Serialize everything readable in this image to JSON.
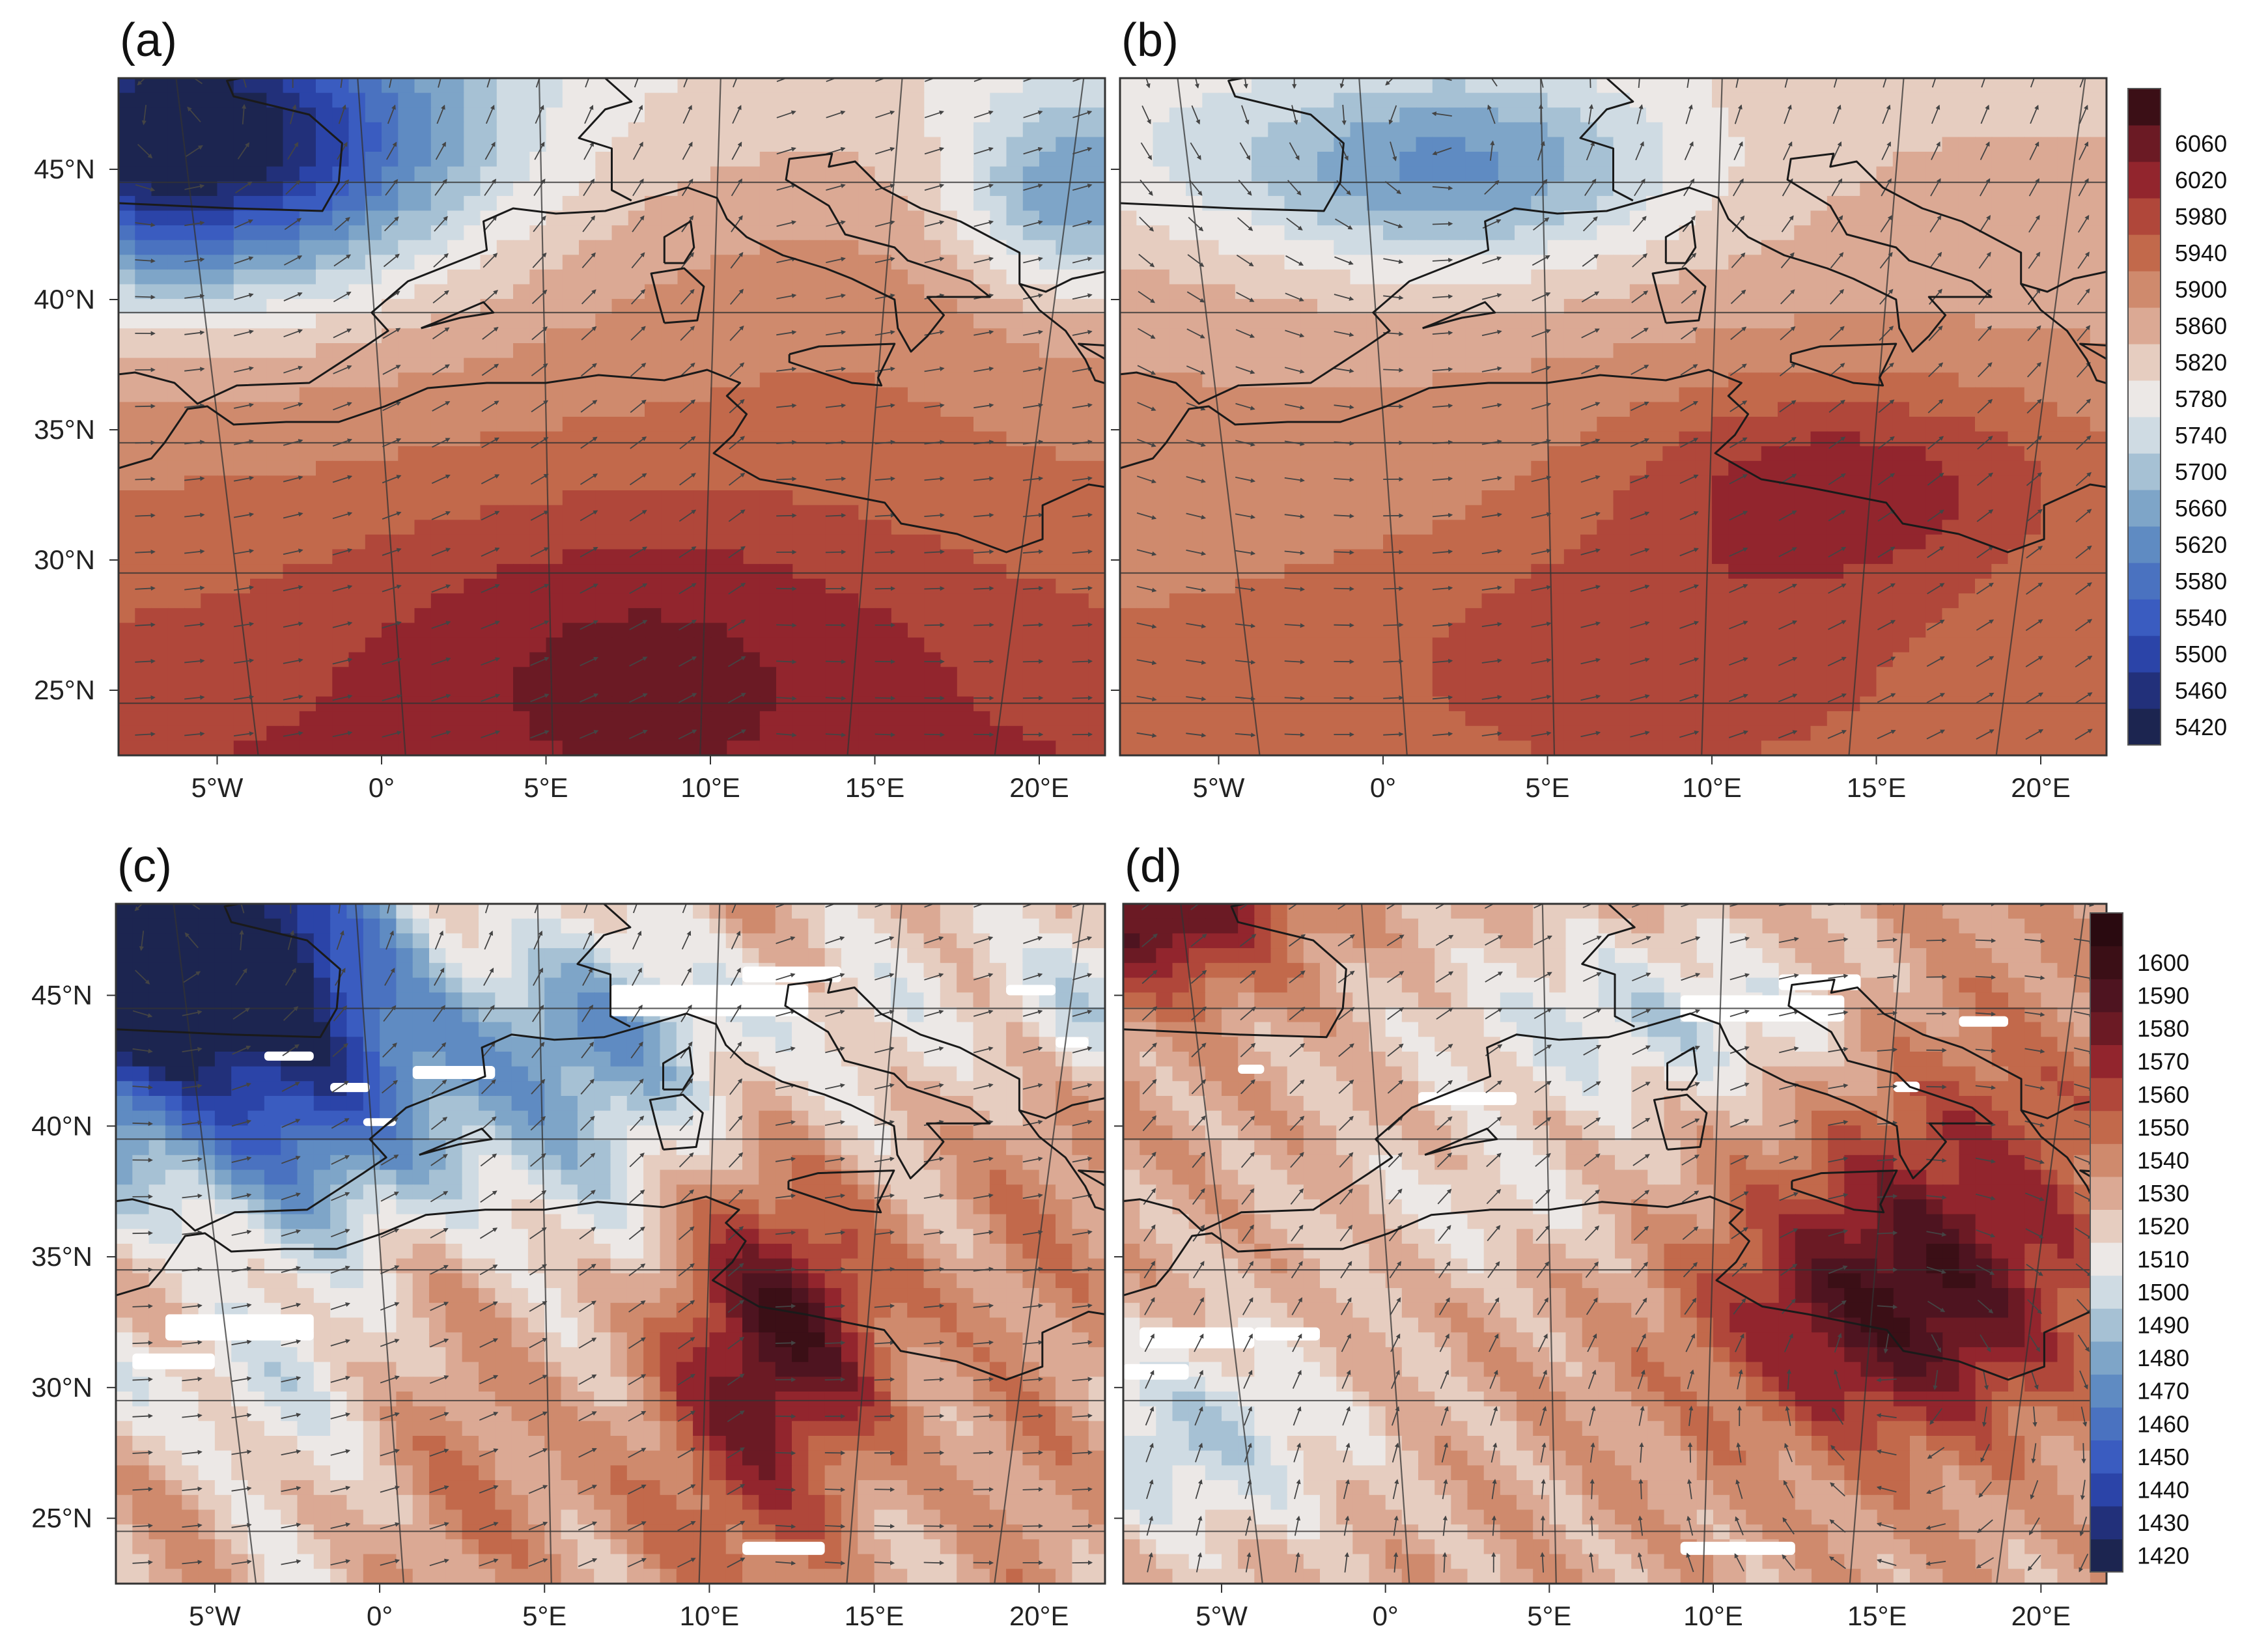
{
  "panels": [
    {
      "label": "(a)",
      "colorbar": "upper",
      "field": "a"
    },
    {
      "label": "(b)",
      "colorbar": "upper",
      "field": "b"
    },
    {
      "label": "(c)",
      "colorbar": "lower",
      "field": "c"
    },
    {
      "label": "(d)",
      "colorbar": "lower",
      "field": "d"
    }
  ],
  "map": {
    "lon_range": [
      -8,
      22
    ],
    "lat_range": [
      22.5,
      48.5
    ],
    "lon_ticks": [
      {
        "value": -5,
        "label": "5°W"
      },
      {
        "value": 0,
        "label": "0°"
      },
      {
        "value": 5,
        "label": "5°E"
      },
      {
        "value": 10,
        "label": "10°E"
      },
      {
        "value": 15,
        "label": "15°E"
      },
      {
        "value": 20,
        "label": "20°E"
      }
    ],
    "lat_ticks": [
      {
        "value": 45,
        "label": "45°N"
      },
      {
        "value": 40,
        "label": "40°N"
      },
      {
        "value": 35,
        "label": "35°N"
      },
      {
        "value": 30,
        "label": "30°N"
      },
      {
        "value": 25,
        "label": "25°N"
      }
    ]
  },
  "colorbars": {
    "upper": {
      "levels": [
        5420,
        5460,
        5500,
        5540,
        5580,
        5620,
        5660,
        5700,
        5740,
        5780,
        5820,
        5860,
        5900,
        5940,
        5980,
        6020,
        6060
      ],
      "labels": [
        "5420",
        "5460",
        "5500",
        "5540",
        "5580",
        "5620",
        "5660",
        "5700",
        "5740",
        "5780",
        "5820",
        "5860",
        "5900",
        "5940",
        "5980",
        "6020",
        "6060"
      ],
      "colors": [
        "#1c2550",
        "#22307a",
        "#2b44a8",
        "#3a5cc0",
        "#4a72c0",
        "#5f8bc2",
        "#7ea5c8",
        "#a6c1d4",
        "#cfdbe3",
        "#ece8e6",
        "#e6cdc0",
        "#dba994",
        "#cf8a6d",
        "#c2694b",
        "#b0473a",
        "#92252d",
        "#6b1a24",
        "#3b0f16"
      ]
    },
    "lower": {
      "levels": [
        1420,
        1430,
        1440,
        1450,
        1460,
        1470,
        1480,
        1490,
        1500,
        1510,
        1520,
        1530,
        1540,
        1550,
        1560,
        1570,
        1580,
        1590,
        1600
      ],
      "labels": [
        "1420",
        "1430",
        "1440",
        "1450",
        "1460",
        "1470",
        "1480",
        "1490",
        "1500",
        "1510",
        "1520",
        "1530",
        "1540",
        "1550",
        "1560",
        "1570",
        "1580",
        "1590",
        "1600"
      ],
      "colors": [
        "#1c2550",
        "#22307a",
        "#2b44a8",
        "#3a5cc0",
        "#4a72c0",
        "#5f8bc2",
        "#7ea5c8",
        "#a6c1d4",
        "#cfdbe3",
        "#ece8e6",
        "#e6cdc0",
        "#dba994",
        "#cf8a6d",
        "#c2694b",
        "#b0473a",
        "#92252d",
        "#6b1a24",
        "#4e1420",
        "#3b0f16",
        "#2a0a10"
      ]
    }
  },
  "style": {
    "coast_color": "#1a1a1a",
    "grid_color": "#333333",
    "arrow_color": "#444444",
    "missing_color": "#ffffff"
  }
}
